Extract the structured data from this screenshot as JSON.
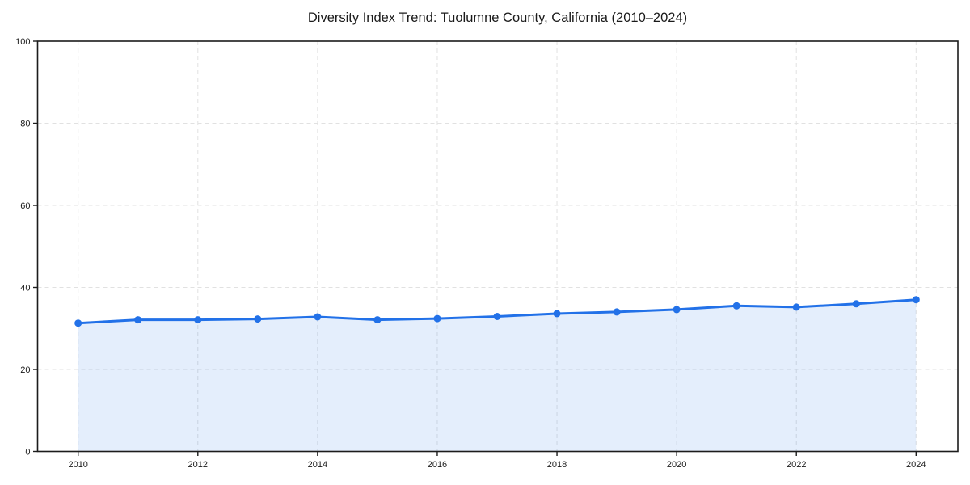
{
  "figure": {
    "background": "#ffffff"
  },
  "chart_data": {
    "type": "line",
    "title": "Diversity Index Trend: Tuolumne County, California (2010–2024)",
    "xlabel": "",
    "ylabel": "",
    "x": [
      2010,
      2011,
      2012,
      2013,
      2014,
      2015,
      2016,
      2017,
      2018,
      2019,
      2020,
      2021,
      2022,
      2023,
      2024
    ],
    "series": [
      {
        "name": "Diversity Index",
        "values": [
          31.3,
          32.1,
          32.1,
          32.3,
          32.8,
          32.1,
          32.4,
          32.9,
          33.6,
          34.0,
          34.6,
          35.5,
          35.2,
          36.0,
          37.0
        ]
      }
    ],
    "xticks": [
      2010,
      2012,
      2014,
      2016,
      2018,
      2020,
      2022,
      2024
    ],
    "yticks": [
      0,
      20,
      40,
      60,
      80,
      100
    ],
    "ylim": [
      0,
      100
    ],
    "xlim": [
      2009.32,
      2024.7
    ],
    "grid": "dashed, both axes",
    "legend": "none",
    "marker": "circle",
    "area_fill": true,
    "colors": {
      "line": "#2271e8",
      "marker": "#2271e8",
      "area": "rgba(34, 113, 232, 0.12)",
      "gridline": "#e1e1e1",
      "spine": "#1c1c1c",
      "tick_label": "#1a1a1a"
    }
  }
}
